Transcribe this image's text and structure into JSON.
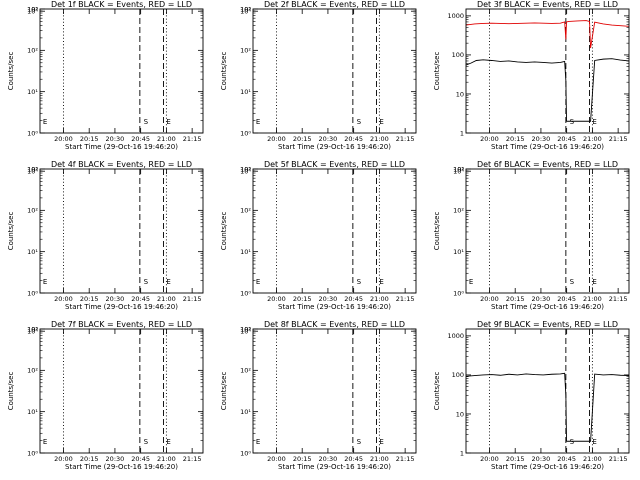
{
  "chart_data": [
    {
      "type": "line",
      "title": "Det 1f BLACK = Events, RED = LLD",
      "xlabel": "Start Time (29-Oct-16 19:46:20)",
      "ylabel": "Counts/sec",
      "yscale": "log",
      "ylim": [
        1,
        1000
      ],
      "ytick_labels": [
        "10⁰",
        "10¹",
        "10²",
        "10³",
        "10⁴",
        "10⁵"
      ],
      "ytick_exps": [
        0,
        1,
        2,
        3,
        4,
        5
      ],
      "xlim": [
        0,
        95
      ],
      "xtick_labels": [
        "20:00",
        "20:15",
        "20:30",
        "20:45",
        "21:00",
        "21:15"
      ],
      "xtick_values": [
        13.67,
        28.67,
        43.67,
        58.67,
        73.67,
        88.67
      ],
      "dotted_x": [
        13.67,
        73.67
      ],
      "dashed_x": [
        58.2,
        72.0
      ],
      "markers": [
        {
          "label": "E",
          "x": 0.8
        },
        {
          "label": "S",
          "x": 59.5
        },
        {
          "label": "E",
          "x": 72.8
        }
      ],
      "series": []
    },
    {
      "type": "line",
      "title": "Det 2f BLACK = Events, RED = LLD",
      "xlabel": "Start Time (29-Oct-16 19:46:20)",
      "ylabel": "Counts/sec",
      "yscale": "log",
      "ylim": [
        1,
        1000
      ],
      "ytick_labels": [
        "10⁰",
        "10¹",
        "10²",
        "10³",
        "10⁴",
        "10⁵"
      ],
      "ytick_exps": [
        0,
        1,
        2,
        3,
        4,
        5
      ],
      "xlim": [
        0,
        95
      ],
      "xtick_labels": [
        "20:00",
        "20:15",
        "20:30",
        "20:45",
        "21:00",
        "21:15"
      ],
      "xtick_values": [
        13.67,
        28.67,
        43.67,
        58.67,
        73.67,
        88.67
      ],
      "dotted_x": [
        13.67,
        73.67
      ],
      "dashed_x": [
        58.2,
        72.0
      ],
      "markers": [
        {
          "label": "E",
          "x": 0.8
        },
        {
          "label": "S",
          "x": 59.5
        },
        {
          "label": "E",
          "x": 72.8
        }
      ],
      "series": []
    },
    {
      "type": "line",
      "title": "Det 3f BLACK = Events, RED = LLD",
      "xlabel": "Start Time (29-Oct-16 19:46:20)",
      "ylabel": "Counts/sec",
      "yscale": "log",
      "ylim": [
        1,
        1500
      ],
      "ytick_labels": [
        "1",
        "10",
        "100",
        "1000"
      ],
      "ytick_exps": [
        0,
        1,
        2,
        3
      ],
      "xlim": [
        0,
        95
      ],
      "xtick_labels": [
        "20:00",
        "20:15",
        "20:30",
        "20:45",
        "21:00",
        "21:15"
      ],
      "xtick_values": [
        13.67,
        28.67,
        43.67,
        58.67,
        73.67,
        88.67
      ],
      "dotted_x": [
        13.67,
        73.67
      ],
      "dashed_x": [
        58.2,
        72.0
      ],
      "markers": [
        {
          "label": "S",
          "x": 59.5
        },
        {
          "label": "E",
          "x": 72.8
        }
      ],
      "series": [
        {
          "color": "#e00000",
          "x": [
            0,
            5,
            10,
            15,
            20,
            25,
            30,
            35,
            40,
            45,
            50,
            55,
            57.5,
            58.2,
            58.6,
            60,
            65,
            70,
            72,
            72.6,
            75,
            80,
            85,
            90,
            95
          ],
          "y": [
            580,
            620,
            640,
            650,
            640,
            630,
            640,
            650,
            660,
            650,
            640,
            650,
            700,
            250,
            700,
            720,
            740,
            760,
            720,
            150,
            690,
            620,
            580,
            560,
            540
          ]
        },
        {
          "color": "#000000",
          "x": [
            0,
            3,
            6,
            10,
            15,
            20,
            25,
            30,
            35,
            40,
            45,
            50,
            55,
            57.5,
            58.2,
            58.6,
            60,
            65,
            70,
            72,
            72.6,
            75,
            80,
            85,
            90,
            95
          ],
          "y": [
            55,
            62,
            72,
            75,
            72,
            68,
            70,
            66,
            64,
            66,
            64,
            62,
            64,
            68,
            22,
            2,
            2,
            2,
            2,
            2,
            2,
            72,
            78,
            80,
            74,
            70
          ]
        }
      ]
    },
    {
      "type": "line",
      "title": "Det 4f BLACK = Events, RED = LLD",
      "xlabel": "Start Time (29-Oct-16 19:46:20)",
      "ylabel": "Counts/sec",
      "yscale": "log",
      "ylim": [
        1,
        1000
      ],
      "ytick_labels": [
        "10⁰",
        "10¹",
        "10²",
        "10³",
        "10⁴",
        "10⁵"
      ],
      "ytick_exps": [
        0,
        1,
        2,
        3,
        4,
        5
      ],
      "xlim": [
        0,
        95
      ],
      "xtick_labels": [
        "20:00",
        "20:15",
        "20:30",
        "20:45",
        "21:00",
        "21:15"
      ],
      "xtick_values": [
        13.67,
        28.67,
        43.67,
        58.67,
        73.67,
        88.67
      ],
      "dotted_x": [
        13.67,
        73.67
      ],
      "dashed_x": [
        58.2,
        72.0
      ],
      "markers": [
        {
          "label": "E",
          "x": 0.8
        },
        {
          "label": "S",
          "x": 59.5
        },
        {
          "label": "E",
          "x": 72.8
        }
      ],
      "series": []
    },
    {
      "type": "line",
      "title": "Det 5f BLACK = Events, RED = LLD",
      "xlabel": "Start Time (29-Oct-16 19:46:20)",
      "ylabel": "Counts/sec",
      "yscale": "log",
      "ylim": [
        1,
        1000
      ],
      "ytick_labels": [
        "10⁰",
        "10¹",
        "10²",
        "10³",
        "10⁴",
        "10⁵"
      ],
      "ytick_exps": [
        0,
        1,
        2,
        3,
        4,
        5
      ],
      "xlim": [
        0,
        95
      ],
      "xtick_labels": [
        "20:00",
        "20:15",
        "20:30",
        "20:45",
        "21:00",
        "21:15"
      ],
      "xtick_values": [
        13.67,
        28.67,
        43.67,
        58.67,
        73.67,
        88.67
      ],
      "dotted_x": [
        13.67,
        73.67
      ],
      "dashed_x": [
        58.2,
        72.0
      ],
      "markers": [
        {
          "label": "E",
          "x": 0.8
        },
        {
          "label": "S",
          "x": 59.5
        },
        {
          "label": "E",
          "x": 72.8
        }
      ],
      "series": []
    },
    {
      "type": "line",
      "title": "Det 6f BLACK = Events, RED = LLD",
      "xlabel": "Start Time (29-Oct-16 19:46:20)",
      "ylabel": "Counts/sec",
      "yscale": "log",
      "ylim": [
        1,
        1000
      ],
      "ytick_labels": [
        "10⁰",
        "10¹",
        "10²",
        "10³",
        "10⁴",
        "10⁵"
      ],
      "ytick_exps": [
        0,
        1,
        2,
        3,
        4,
        5
      ],
      "xlim": [
        0,
        95
      ],
      "xtick_labels": [
        "20:00",
        "20:15",
        "20:30",
        "20:45",
        "21:00",
        "21:15"
      ],
      "xtick_values": [
        13.67,
        28.67,
        43.67,
        58.67,
        73.67,
        88.67
      ],
      "dotted_x": [
        13.67,
        73.67
      ],
      "dashed_x": [
        58.2,
        72.0
      ],
      "markers": [
        {
          "label": "E",
          "x": 0.8
        },
        {
          "label": "S",
          "x": 59.5
        },
        {
          "label": "E",
          "x": 72.8
        }
      ],
      "series": []
    },
    {
      "type": "line",
      "title": "Det 7f BLACK = Events, RED = LLD",
      "xlabel": "Start Time (29-Oct-16 19:46:20)",
      "ylabel": "Counts/sec",
      "yscale": "log",
      "ylim": [
        1,
        1000
      ],
      "ytick_labels": [
        "10⁰",
        "10¹",
        "10²",
        "10³",
        "10⁴",
        "10⁵"
      ],
      "ytick_exps": [
        0,
        1,
        2,
        3,
        4,
        5
      ],
      "xlim": [
        0,
        95
      ],
      "xtick_labels": [
        "20:00",
        "20:15",
        "20:30",
        "20:45",
        "21:00",
        "21:15"
      ],
      "xtick_values": [
        13.67,
        28.67,
        43.67,
        58.67,
        73.67,
        88.67
      ],
      "dotted_x": [
        13.67,
        73.67
      ],
      "dashed_x": [
        58.2,
        72.0
      ],
      "markers": [
        {
          "label": "E",
          "x": 0.8
        },
        {
          "label": "S",
          "x": 59.5
        },
        {
          "label": "E",
          "x": 72.8
        }
      ],
      "series": []
    },
    {
      "type": "line",
      "title": "Det 8f BLACK = Events, RED = LLD",
      "xlabel": "Start Time (29-Oct-16 19:46:20)",
      "ylabel": "Counts/sec",
      "yscale": "log",
      "ylim": [
        1,
        1000
      ],
      "ytick_labels": [
        "10⁰",
        "10¹",
        "10²",
        "10³",
        "10⁴",
        "10⁵"
      ],
      "ytick_exps": [
        0,
        1,
        2,
        3,
        4,
        5
      ],
      "xlim": [
        0,
        95
      ],
      "xtick_labels": [
        "20:00",
        "20:15",
        "20:30",
        "20:45",
        "21:00",
        "21:15"
      ],
      "xtick_values": [
        13.67,
        28.67,
        43.67,
        58.67,
        73.67,
        88.67
      ],
      "dotted_x": [
        13.67,
        73.67
      ],
      "dashed_x": [
        58.2,
        72.0
      ],
      "markers": [
        {
          "label": "E",
          "x": 0.8
        },
        {
          "label": "S",
          "x": 59.5
        },
        {
          "label": "E",
          "x": 72.8
        }
      ],
      "series": []
    },
    {
      "type": "line",
      "title": "Det 9f BLACK = Events, RED = LLD",
      "xlabel": "Start Time (29-Oct-16 19:46:20)",
      "ylabel": "Counts/sec",
      "yscale": "log",
      "ylim": [
        1,
        1500
      ],
      "ytick_labels": [
        "1",
        "10",
        "100",
        "1000"
      ],
      "ytick_exps": [
        0,
        1,
        2,
        3
      ],
      "xlim": [
        0,
        95
      ],
      "xtick_labels": [
        "20:00",
        "20:15",
        "20:30",
        "20:45",
        "21:00",
        "21:15"
      ],
      "xtick_values": [
        13.67,
        28.67,
        43.67,
        58.67,
        73.67,
        88.67
      ],
      "dotted_x": [
        13.67,
        73.67
      ],
      "dashed_x": [
        58.2,
        72.0
      ],
      "markers": [
        {
          "label": "S",
          "x": 59.5
        },
        {
          "label": "E",
          "x": 72.8
        }
      ],
      "series": [
        {
          "color": "#000000",
          "x": [
            0,
            5,
            10,
            15,
            20,
            25,
            30,
            35,
            40,
            45,
            50,
            55,
            57.5,
            58.2,
            58.6,
            60,
            65,
            70,
            72,
            72.6,
            75,
            80,
            85,
            90,
            95
          ],
          "y": [
            92,
            96,
            100,
            102,
            98,
            104,
            100,
            106,
            102,
            100,
            104,
            106,
            110,
            30,
            2,
            2,
            2,
            2,
            2,
            2,
            105,
            100,
            102,
            98,
            96
          ]
        }
      ]
    }
  ]
}
